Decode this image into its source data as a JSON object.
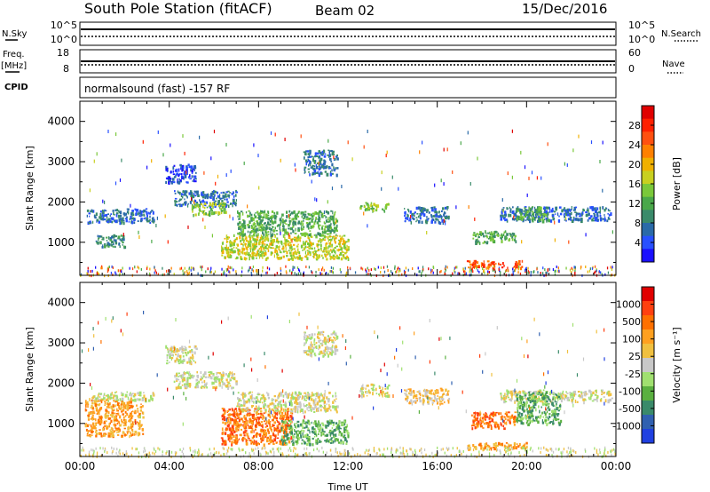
{
  "header": {
    "station": "South Pole Station (fitACF)",
    "beam": "Beam 02",
    "date": "15/Dec/2016"
  },
  "status_panels": {
    "nsky": {
      "label": "N.Sky",
      "scale_top": "10^5",
      "scale_bottom": "10^0"
    },
    "nsearch": {
      "label": "N.Search",
      "scale_top": "10^5",
      "scale_bottom": "10^0"
    },
    "freq": {
      "label_line1": "Freq.",
      "label_line2": "[MHz]",
      "top": "18",
      "bottom": "8"
    },
    "nave": {
      "label": "Nave",
      "top": "60",
      "bottom": "0"
    },
    "cpid": {
      "label": "CPID",
      "text": "normalsound (fast) -157 RF"
    }
  },
  "chart_data": [
    {
      "type": "heatmap",
      "name": "power",
      "ylabel": "Slant Range [km]",
      "xlabel": "",
      "ylim": [
        180,
        4500
      ],
      "xlim": [
        0,
        24
      ],
      "yticks": [
        "1000",
        "2000",
        "3000",
        "4000"
      ],
      "colorbar": {
        "label": "Power [dB]",
        "ticks": [
          "4",
          "8",
          "12",
          "16",
          "20",
          "24",
          "28"
        ],
        "colors": [
          "#1a10ff",
          "#2850ff",
          "#2a6aa8",
          "#3a8a6a",
          "#4aa84a",
          "#7ac83a",
          "#c8d020",
          "#f0b000",
          "#ff8000",
          "#ff5010",
          "#ff2000",
          "#e00000"
        ]
      },
      "echo_regions": [
        {
          "t": [
            0.3,
            3.3
          ],
          "r": [
            1500,
            1850
          ],
          "level": 2
        },
        {
          "t": [
            0.7,
            2.0
          ],
          "r": [
            900,
            1200
          ],
          "level": 3
        },
        {
          "t": [
            4.2,
            7.0
          ],
          "r": [
            1900,
            2300
          ],
          "level": 2
        },
        {
          "t": [
            5.0,
            6.5
          ],
          "r": [
            1700,
            2000
          ],
          "level": 5
        },
        {
          "t": [
            3.8,
            5.2
          ],
          "r": [
            2500,
            2950
          ],
          "level": 1
        },
        {
          "t": [
            6.3,
            12.0
          ],
          "r": [
            600,
            1200
          ],
          "level": 6
        },
        {
          "t": [
            7.0,
            11.5
          ],
          "r": [
            1200,
            1800
          ],
          "level": 4
        },
        {
          "t": [
            10.0,
            11.5
          ],
          "r": [
            2700,
            3300
          ],
          "level": 2
        },
        {
          "t": [
            12.5,
            13.8
          ],
          "r": [
            1800,
            2000
          ],
          "level": 5
        },
        {
          "t": [
            14.5,
            16.5
          ],
          "r": [
            1500,
            1900
          ],
          "level": 2
        },
        {
          "t": [
            17.5,
            19.5
          ],
          "r": [
            1000,
            1300
          ],
          "level": 4
        },
        {
          "t": [
            18.8,
            23.8
          ],
          "r": [
            1550,
            1900
          ],
          "level": 2
        },
        {
          "t": [
            19.5,
            21.0
          ],
          "r": [
            1550,
            1900
          ],
          "level": 4
        },
        {
          "t": [
            17.3,
            19.8
          ],
          "r": [
            380,
            560
          ],
          "level": 9
        }
      ]
    },
    {
      "type": "heatmap",
      "name": "velocity",
      "ylabel": "Slant Range [km]",
      "xlabel": "Time UT",
      "ylim": [
        180,
        4500
      ],
      "xlim": [
        0,
        24
      ],
      "xticks": [
        "00:00",
        "04:00",
        "08:00",
        "12:00",
        "16:00",
        "20:00",
        "00:00"
      ],
      "yticks": [
        "1000",
        "2000",
        "3000",
        "4000"
      ],
      "colorbar": {
        "label": "Velocity [m s⁻¹]",
        "ticks": [
          "1000",
          "500",
          "100",
          "25",
          "-25",
          "-100",
          "-500",
          "-1000"
        ],
        "colors": [
          "#2040e0",
          "#3060b0",
          "#3a8a6a",
          "#5ab040",
          "#a0e070",
          "#c8c8c8",
          "#f0c040",
          "#ffa020",
          "#ff7000",
          "#ff4010",
          "#e00000"
        ]
      },
      "echo_regions": [
        {
          "t": [
            0.3,
            3.3
          ],
          "r": [
            1600,
            1800
          ],
          "level": 5
        },
        {
          "t": [
            0.2,
            2.8
          ],
          "r": [
            700,
            1600
          ],
          "level": 7
        },
        {
          "t": [
            4.2,
            7.0
          ],
          "r": [
            1900,
            2300
          ],
          "level": 5
        },
        {
          "t": [
            3.8,
            5.2
          ],
          "r": [
            2500,
            2950
          ],
          "level": 5
        },
        {
          "t": [
            6.3,
            9.5
          ],
          "r": [
            500,
            1400
          ],
          "level": 8
        },
        {
          "t": [
            9.0,
            12.0
          ],
          "r": [
            500,
            1100
          ],
          "level": 3
        },
        {
          "t": [
            7.0,
            11.5
          ],
          "r": [
            1300,
            1800
          ],
          "level": 5
        },
        {
          "t": [
            10.0,
            11.5
          ],
          "r": [
            2700,
            3300
          ],
          "level": 5
        },
        {
          "t": [
            12.5,
            13.8
          ],
          "r": [
            1700,
            2000
          ],
          "level": 5
        },
        {
          "t": [
            14.5,
            16.5
          ],
          "r": [
            1500,
            1900
          ],
          "level": 6
        },
        {
          "t": [
            17.5,
            19.5
          ],
          "r": [
            900,
            1300
          ],
          "level": 8
        },
        {
          "t": [
            18.8,
            23.8
          ],
          "r": [
            1550,
            1850
          ],
          "level": 5
        },
        {
          "t": [
            19.5,
            21.5
          ],
          "r": [
            1000,
            1800
          ],
          "level": 3
        },
        {
          "t": [
            17.3,
            20.0
          ],
          "r": [
            380,
            540
          ],
          "level": 7
        }
      ]
    }
  ]
}
